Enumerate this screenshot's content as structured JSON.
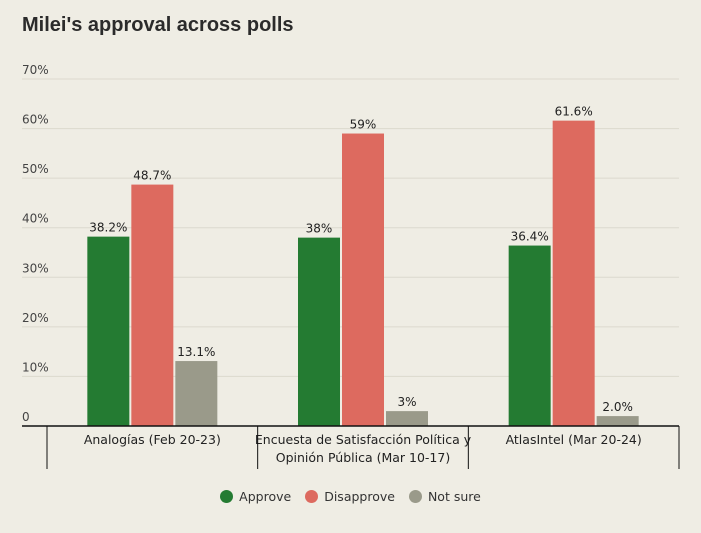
{
  "chart_data": {
    "type": "bar",
    "title": "Milei's approval across polls",
    "categories": [
      [
        "Analogías (Feb 20-23)"
      ],
      [
        "Encuesta de Satisfacción Política y",
        "Opinión Pública (Mar 10-17)"
      ],
      [
        "AtlasIntel (Mar 20-24)"
      ]
    ],
    "series": [
      {
        "name": "Approve",
        "color": "#247b32",
        "values": [
          38.2,
          38,
          36.4
        ],
        "labels": [
          "38.2%",
          "38%",
          "36.4%"
        ]
      },
      {
        "name": "Disapprove",
        "color": "#dd6a5f",
        "values": [
          48.7,
          59,
          61.6
        ],
        "labels": [
          "48.7%",
          "59%",
          "61.6%"
        ]
      },
      {
        "name": "Not sure",
        "color": "#9a9a8a",
        "values": [
          13.1,
          3,
          2.0
        ],
        "labels": [
          "13.1%",
          "3%",
          "2.0%"
        ]
      }
    ],
    "ylim": [
      0,
      70
    ],
    "yticks": [
      0,
      10,
      20,
      30,
      40,
      50,
      60,
      70
    ],
    "ytick_labels": [
      "0",
      "10%",
      "20%",
      "30%",
      "40%",
      "50%",
      "60%",
      "70%"
    ],
    "grid": true,
    "legend_position": "bottom-center"
  }
}
